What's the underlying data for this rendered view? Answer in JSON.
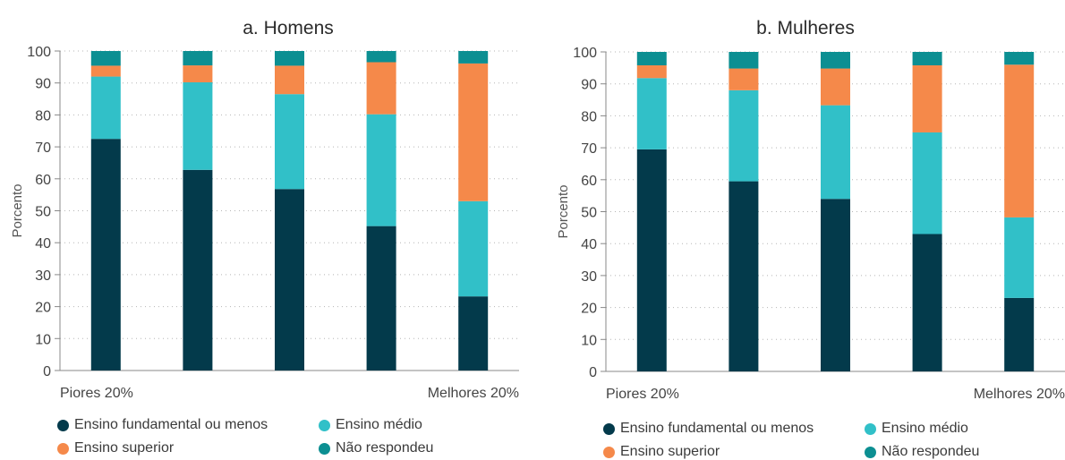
{
  "chart_data": [
    {
      "type": "bar",
      "stacked": true,
      "title": "a. Homens",
      "ylabel": "Porcento",
      "ylim": [
        0,
        100
      ],
      "yticks": [
        0,
        10,
        20,
        30,
        40,
        50,
        60,
        70,
        80,
        90,
        100
      ],
      "grid": "horizontal dotted",
      "x_end_labels": [
        "Piores 20%",
        "Melhores 20%"
      ],
      "categories": [
        "1",
        "2",
        "3",
        "4",
        "5"
      ],
      "series": [
        {
          "name": "Ensino fundamental ou menos",
          "color": "#033a4b",
          "values": [
            72.5,
            62.8,
            56.8,
            45.2,
            23.2
          ]
        },
        {
          "name": "Ensino médio",
          "color": "#31c0c8",
          "values": [
            19.5,
            27.4,
            29.7,
            35.0,
            29.8
          ]
        },
        {
          "name": "Ensino superior",
          "color": "#f5894a",
          "values": [
            3.4,
            5.3,
            8.9,
            16.3,
            43.1
          ]
        },
        {
          "name": "Não respondeu",
          "color": "#0c8f92",
          "values": [
            4.6,
            4.5,
            4.6,
            3.5,
            3.9
          ]
        }
      ]
    },
    {
      "type": "bar",
      "stacked": true,
      "title": "b. Mulheres",
      "ylabel": "Porcento",
      "ylim": [
        0,
        100
      ],
      "yticks": [
        0,
        10,
        20,
        30,
        40,
        50,
        60,
        70,
        80,
        90,
        100
      ],
      "grid": "horizontal dotted",
      "x_end_labels": [
        "Piores 20%",
        "Melhores 20%"
      ],
      "categories": [
        "1",
        "2",
        "3",
        "4",
        "5"
      ],
      "series": [
        {
          "name": "Ensino fundamental ou menos",
          "color": "#033a4b",
          "values": [
            69.5,
            59.5,
            54.0,
            43.0,
            23.0
          ]
        },
        {
          "name": "Ensino médio",
          "color": "#31c0c8",
          "values": [
            22.3,
            28.5,
            29.3,
            31.8,
            25.2
          ]
        },
        {
          "name": "Ensino superior",
          "color": "#f5894a",
          "values": [
            4.0,
            6.8,
            11.5,
            21.0,
            47.8
          ]
        },
        {
          "name": "Não respondeu",
          "color": "#0c8f92",
          "values": [
            4.2,
            5.2,
            5.2,
            4.2,
            4.0
          ]
        }
      ]
    }
  ]
}
